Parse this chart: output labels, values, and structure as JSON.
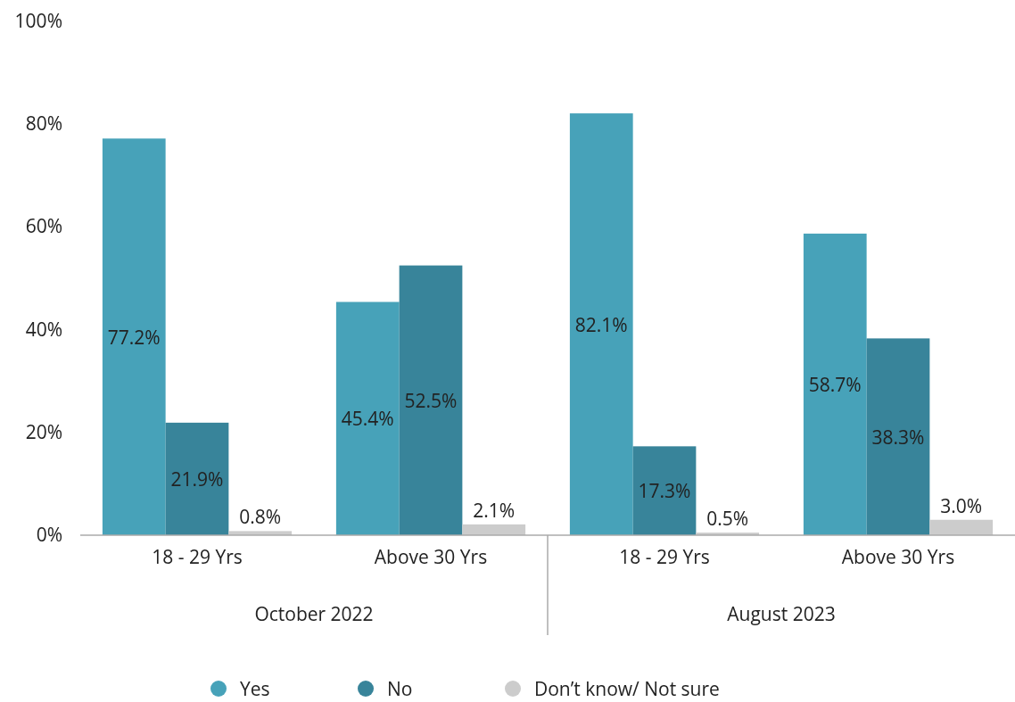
{
  "chart_data": {
    "type": "bar",
    "categories": [
      "18 - 29 Yrs",
      "Above 30 Yrs",
      "18 - 29 Yrs",
      "Above 30 Yrs"
    ],
    "series": [
      {
        "name": "Yes",
        "color": "#47a2b9",
        "values": [
          77.2,
          45.4,
          82.1,
          58.7
        ],
        "value_labels": [
          "77.2%",
          "45.4%",
          "82.1%",
          "58.7%"
        ]
      },
      {
        "name": "No",
        "color": "#38849a",
        "values": [
          21.9,
          52.5,
          17.3,
          38.3
        ],
        "value_labels": [
          "21.9%",
          "52.5%",
          "17.3%",
          "38.3%"
        ]
      },
      {
        "name": "Don’t know/ Not sure",
        "color": "#cccccc",
        "values": [
          0.8,
          2.1,
          0.5,
          3.0
        ],
        "value_labels": [
          "0.8%",
          "2.1%",
          "0.5%",
          "3.0%"
        ]
      }
    ],
    "ylim": [
      0,
      100
    ],
    "yticks": [
      {
        "value": 0,
        "label": "0%"
      },
      {
        "value": 20,
        "label": "20%"
      },
      {
        "value": 40,
        "label": "40%"
      },
      {
        "value": 60,
        "label": "60%"
      },
      {
        "value": 80,
        "label": "80%"
      },
      {
        "value": 100,
        "label": "100%"
      }
    ],
    "annotations": [
      "October 2022",
      "August 2023"
    ],
    "grid": false,
    "legend": "bottom"
  }
}
